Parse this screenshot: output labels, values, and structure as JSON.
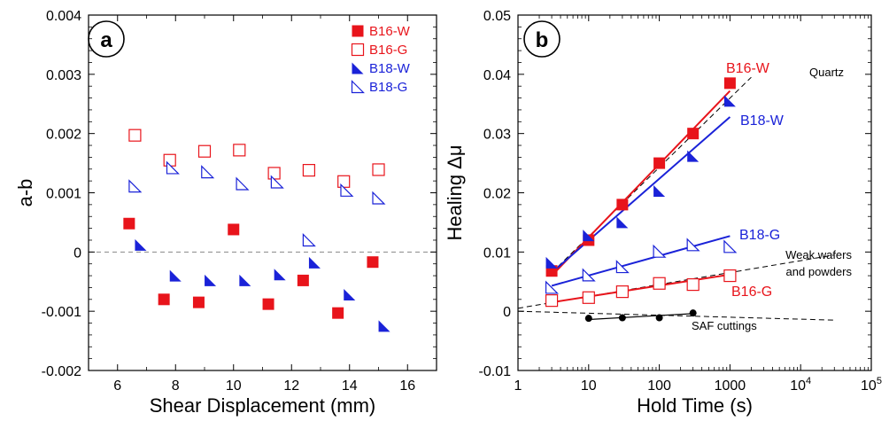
{
  "colors": {
    "red": "#e8141b",
    "blue": "#1a22d8",
    "black": "#000000",
    "gray": "#888888"
  },
  "chart_data": [
    {
      "panel": "a",
      "type": "scatter",
      "xlabel": "Shear Displacement (mm)",
      "ylabel": "a-b",
      "xlim": [
        5,
        17
      ],
      "ylim": [
        -0.002,
        0.004
      ],
      "xticks": [
        6,
        8,
        10,
        12,
        14,
        16
      ],
      "xtick_labels": [
        "6",
        "8",
        "10",
        "12",
        "14",
        "16"
      ],
      "yticks": [
        -0.002,
        -0.001,
        0,
        0.001,
        0.002,
        0.003,
        0.004
      ],
      "ytick_labels": [
        "-0.002",
        "-0.001",
        "0",
        "0.001",
        "0.002",
        "0.003",
        "0.004"
      ],
      "reference_line_y": 0,
      "legend_position": "top-right",
      "series": [
        {
          "name": "B16-W",
          "marker": "filled-square",
          "color": "red",
          "x": [
            6.4,
            7.6,
            8.8,
            10.0,
            11.2,
            12.4,
            13.6,
            14.8
          ],
          "y": [
            0.00048,
            -0.0008,
            -0.00085,
            0.00038,
            -0.00088,
            -0.00048,
            -0.00103,
            -0.00017
          ]
        },
        {
          "name": "B16-G",
          "marker": "open-square",
          "color": "red",
          "x": [
            6.6,
            7.8,
            9.0,
            10.2,
            11.4,
            12.6,
            13.8,
            15.0
          ],
          "y": [
            0.00197,
            0.00155,
            0.0017,
            0.00172,
            0.00133,
            0.00138,
            0.00119,
            0.00139
          ]
        },
        {
          "name": "B18-W",
          "marker": "filled-triangle",
          "color": "blue",
          "x": [
            6.8,
            8.0,
            9.2,
            10.4,
            11.6,
            12.8,
            14.0,
            15.2
          ],
          "y": [
            0.00012,
            -0.0004,
            -0.00048,
            -0.00048,
            -0.00038,
            -0.00018,
            -0.00072,
            -0.00125
          ]
        },
        {
          "name": "B18-G",
          "marker": "open-triangle",
          "color": "blue",
          "x": [
            6.6,
            7.9,
            9.1,
            10.3,
            11.5,
            12.6,
            13.9,
            15.0
          ],
          "y": [
            0.00111,
            0.00142,
            0.00135,
            0.00115,
            0.00118,
            0.0002,
            0.00104,
            0.00091
          ]
        }
      ]
    },
    {
      "panel": "b",
      "type": "scatter",
      "xscale": "log",
      "xlabel": "Hold Time (s)",
      "ylabel": "Healing Δμ",
      "xlim": [
        1,
        100000
      ],
      "ylim": [
        -0.01,
        0.05
      ],
      "xticks": [
        1,
        10,
        100,
        1000,
        10000,
        100000
      ],
      "xtick_labels": [
        {
          "base": "1",
          "exp": ""
        },
        {
          "base": "10",
          "exp": ""
        },
        {
          "base": "100",
          "exp": ""
        },
        {
          "base": "1000",
          "exp": ""
        },
        {
          "base": "10",
          "exp": "4"
        },
        {
          "base": "10",
          "exp": "5"
        }
      ],
      "yticks": [
        -0.01,
        0,
        0.01,
        0.02,
        0.03,
        0.04,
        0.05
      ],
      "ytick_labels": [
        "-0.01",
        "0",
        "0.01",
        "0.02",
        "0.03",
        "0.04",
        "0.05"
      ],
      "series": [
        {
          "name": "B16-W",
          "label": "B16-W",
          "marker": "filled-square",
          "color": "red",
          "x": [
            3,
            10,
            30,
            100,
            300,
            1000
          ],
          "y": [
            0.0068,
            0.012,
            0.018,
            0.025,
            0.03,
            0.0385
          ],
          "fit": {
            "x": [
              3,
              1000
            ],
            "y": [
              0.006,
              0.0372
            ]
          }
        },
        {
          "name": "B18-W",
          "label": "B18-W",
          "marker": "filled-triangle",
          "color": "blue",
          "x": [
            3,
            10,
            30,
            100,
            300,
            1000
          ],
          "y": [
            0.0082,
            0.0128,
            0.015,
            0.0203,
            0.0262,
            0.0355
          ],
          "fit": {
            "x": [
              3,
              1000
            ],
            "y": [
              0.0065,
              0.0328
            ]
          }
        },
        {
          "name": "B18-G",
          "label": "B18-G",
          "marker": "open-triangle",
          "color": "blue",
          "x": [
            3,
            10,
            30,
            100,
            300,
            1000
          ],
          "y": [
            0.004,
            0.0061,
            0.0075,
            0.0101,
            0.0112,
            0.0109
          ],
          "fit": {
            "x": [
              3,
              1000
            ],
            "y": [
              0.0043,
              0.0127
            ]
          }
        },
        {
          "name": "B16-G",
          "label": "B16-G",
          "marker": "open-square",
          "color": "red",
          "x": [
            3,
            10,
            30,
            100,
            300,
            1000
          ],
          "y": [
            0.0018,
            0.0023,
            0.0033,
            0.0047,
            0.0045,
            0.006
          ],
          "fit": {
            "x": [
              3,
              1000
            ],
            "y": [
              0.0015,
              0.0062
            ]
          }
        },
        {
          "name": "SAF cuttings",
          "label": "SAF cuttings",
          "marker": "filled-circle",
          "color": "black",
          "x": [
            10,
            30,
            100,
            300
          ],
          "y": [
            -0.0012,
            -0.0011,
            -0.0011,
            -0.0003
          ],
          "fit": {
            "x": [
              10,
              300
            ],
            "y": [
              -0.0014,
              -0.0004
            ]
          }
        }
      ],
      "reference_lines": [
        {
          "name": "Quartz",
          "label": "Quartz",
          "x": [
            3,
            2000
          ],
          "y": [
            0.0065,
            0.0395
          ]
        },
        {
          "name": "Weak wafers and powders",
          "label_lines": [
            "Weak wafers",
            "and powders"
          ],
          "x": [
            1,
            30000
          ],
          "y": [
            0.0005,
            0.0095
          ]
        },
        {
          "name": "SAF cuttings trend",
          "x": [
            1,
            30000
          ],
          "y": [
            0.0,
            -0.0015
          ]
        }
      ]
    }
  ]
}
